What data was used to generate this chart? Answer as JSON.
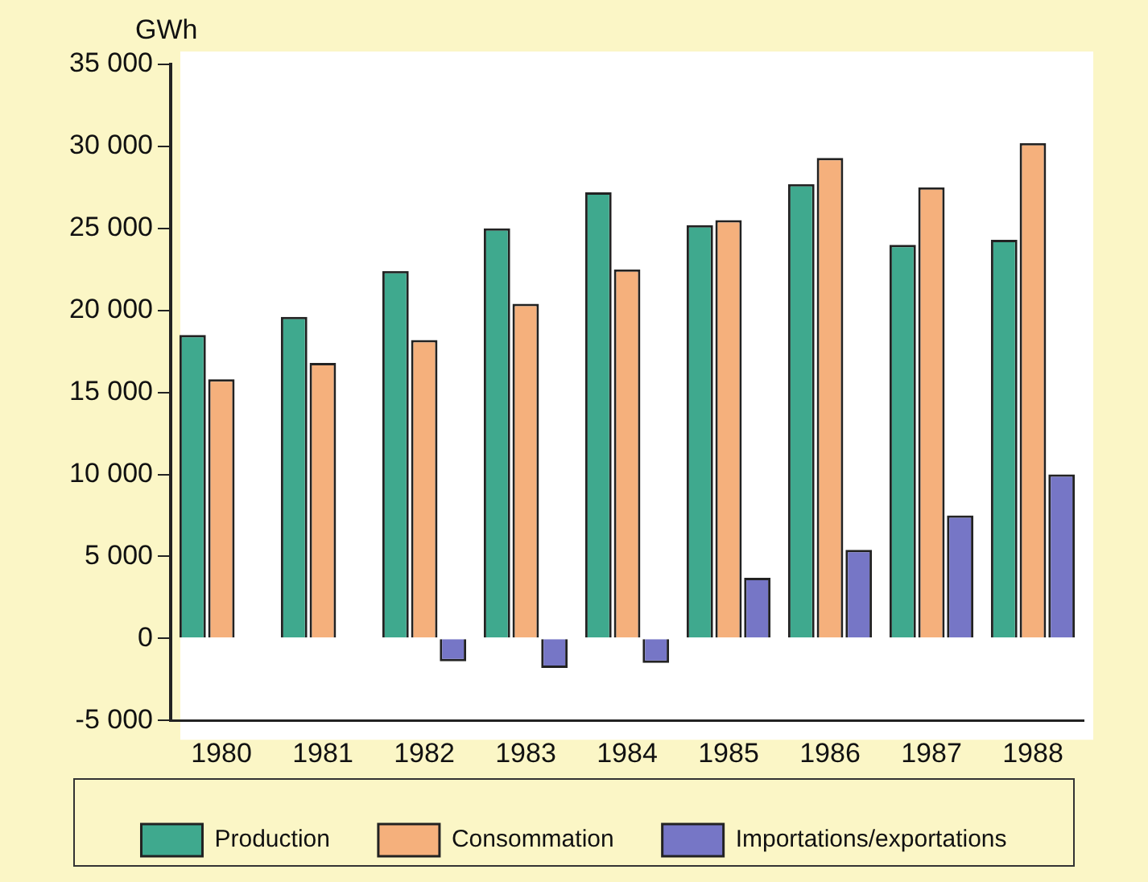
{
  "chart_data": {
    "type": "bar",
    "ylabel": "GWh",
    "categories": [
      "1980",
      "1981",
      "1982",
      "1983",
      "1984",
      "1985",
      "1986",
      "1987",
      "1988"
    ],
    "series": [
      {
        "name": "Production",
        "color": "#3fa98e",
        "values": [
          18500,
          19600,
          22400,
          25000,
          27200,
          25200,
          27700,
          24000,
          24300
        ]
      },
      {
        "name": "Consommation",
        "color": "#f5b07c",
        "values": [
          15800,
          16800,
          18200,
          20400,
          22500,
          25500,
          29300,
          27500,
          30200
        ]
      },
      {
        "name": "Importations/exportations",
        "color": "#7676c6",
        "values": [
          0,
          0,
          -1400,
          -1800,
          -1500,
          3700,
          5400,
          7500,
          10000
        ]
      }
    ],
    "ylim": [
      -5000,
      35000
    ],
    "yticks": [
      {
        "value": -5000,
        "label": "-5 000"
      },
      0,
      {
        "value": 5000,
        "label": "5 000"
      },
      {
        "value": 10000,
        "label": "10 000"
      },
      {
        "value": 15000,
        "label": "15 000"
      },
      {
        "value": 20000,
        "label": "20 000"
      },
      {
        "value": 25000,
        "label": "25 000"
      },
      {
        "value": 30000,
        "label": "30 000"
      },
      {
        "value": 35000,
        "label": "35 000"
      }
    ],
    "grid": false,
    "legend": "bottom"
  }
}
